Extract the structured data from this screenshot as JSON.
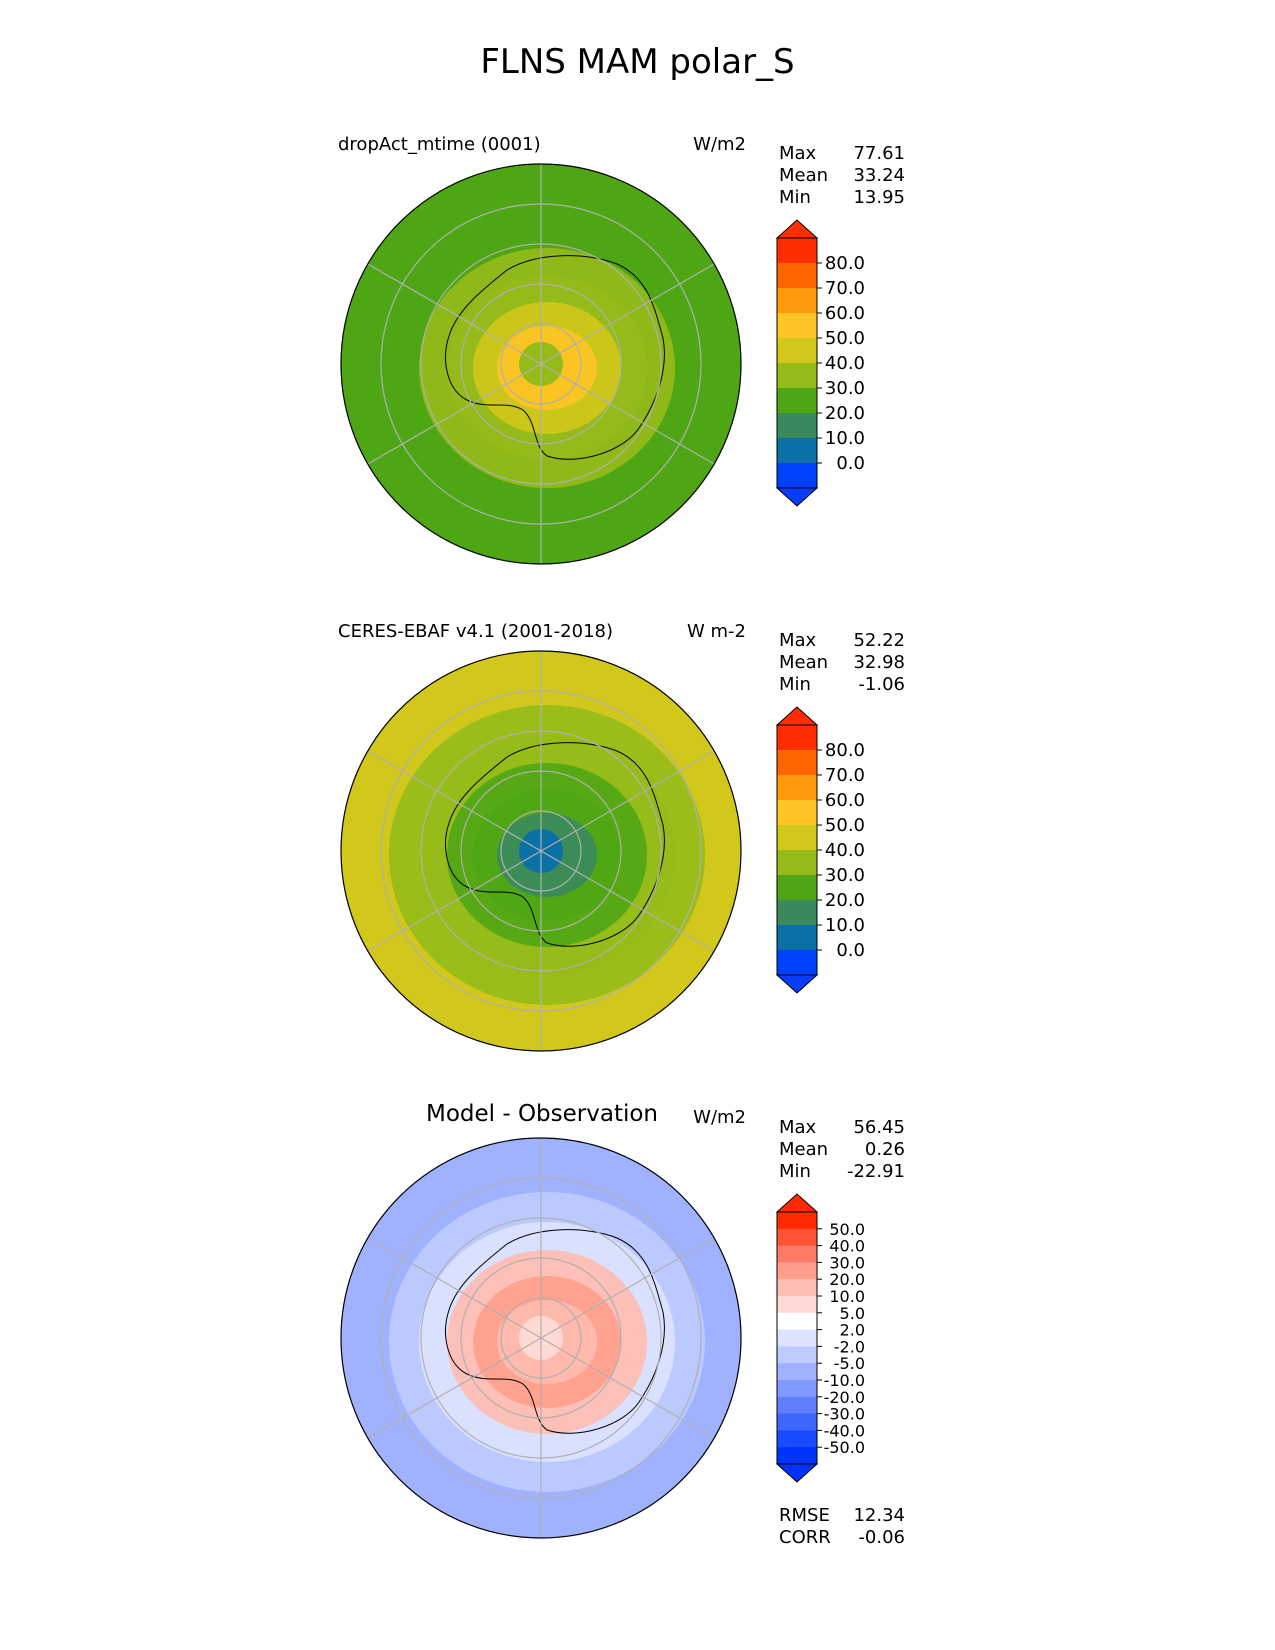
{
  "title": "FLNS MAM polar_S",
  "panels": [
    {
      "title": "dropAct_mtime (0001)",
      "units": "W/m2",
      "stats": [
        {
          "label": "Max",
          "value": "77.61"
        },
        {
          "label": "Mean",
          "value": "33.24"
        },
        {
          "label": "Min",
          "value": "13.95"
        }
      ],
      "colorbar": {
        "labels": [
          "80.0",
          "70.0",
          "60.0",
          "50.0",
          "40.0",
          "30.0",
          "20.0",
          "10.0",
          "0.0"
        ],
        "colors": [
          "#ff2e00",
          "#ff6600",
          "#ff9a0d",
          "#ffc425",
          "#d2c81c",
          "#95bb19",
          "#4fa614",
          "#3a8a5e",
          "#0a70a6",
          "#0040ff"
        ],
        "top_color": "#ff2e00",
        "bottom_color": "#0a3cff"
      },
      "map": {
        "base": "#4fa614",
        "rings": [
          "#4fa614",
          "#95bb19",
          "#95bb19",
          "#d2c81c",
          "#ffc425"
        ],
        "center": "#95bb19"
      }
    },
    {
      "title": "CERES-EBAF v4.1 (2001-2018)",
      "units": "W m-2",
      "stats": [
        {
          "label": "Max",
          "value": "52.22"
        },
        {
          "label": "Mean",
          "value": "32.98"
        },
        {
          "label": "Min",
          "value": "-1.06"
        }
      ],
      "colorbar": {
        "labels": [
          "80.0",
          "70.0",
          "60.0",
          "50.0",
          "40.0",
          "30.0",
          "20.0",
          "10.0",
          "0.0"
        ],
        "colors": [
          "#ff2e00",
          "#ff6600",
          "#ff9a0d",
          "#ffc425",
          "#d2c81c",
          "#95bb19",
          "#4fa614",
          "#3a8a5e",
          "#0a70a6",
          "#0040ff"
        ],
        "top_color": "#ff2e00",
        "bottom_color": "#0a3cff"
      },
      "map": {
        "base": "#d2c81c",
        "rings": [
          "#95bb19",
          "#95bb19",
          "#4fa614",
          "#4fa614",
          "#3a8a5e"
        ],
        "center": "#0a70a6"
      }
    },
    {
      "title": "Model - Observation",
      "units": "W/m2",
      "stats": [
        {
          "label": "Max",
          "value": "56.45"
        },
        {
          "label": "Mean",
          "value": "0.26"
        },
        {
          "label": "Min",
          "value": "-22.91"
        }
      ],
      "colorbar": {
        "labels": [
          "50.0",
          "40.0",
          "30.0",
          "20.0",
          "10.0",
          "5.0",
          "2.0",
          "-2.0",
          "-5.0",
          "-10.0",
          "-20.0",
          "-30.0",
          "-40.0",
          "-50.0"
        ],
        "colors": [
          "#ff2a00",
          "#ff5236",
          "#ff7a66",
          "#ff9e8c",
          "#ffbcb0",
          "#ffdad4",
          "#ffffff",
          "#dde3ff",
          "#bfcbff",
          "#a0b2ff",
          "#8099ff",
          "#5f7fff",
          "#3f66ff",
          "#1a4cff",
          "#0033ff"
        ],
        "top_color": "#ff2a00",
        "bottom_color": "#0033ff"
      },
      "map": {
        "base": "#a0b2ff",
        "rings": [
          "#bfcbff",
          "#dde3ff",
          "#ffbcb0",
          "#ff9e8c",
          "#ffbcb0"
        ],
        "center": "#ffdad4"
      },
      "extra_stats": [
        {
          "label": "RMSE",
          "value": "12.34"
        },
        {
          "label": "CORR",
          "value": "-0.06"
        }
      ]
    }
  ]
}
